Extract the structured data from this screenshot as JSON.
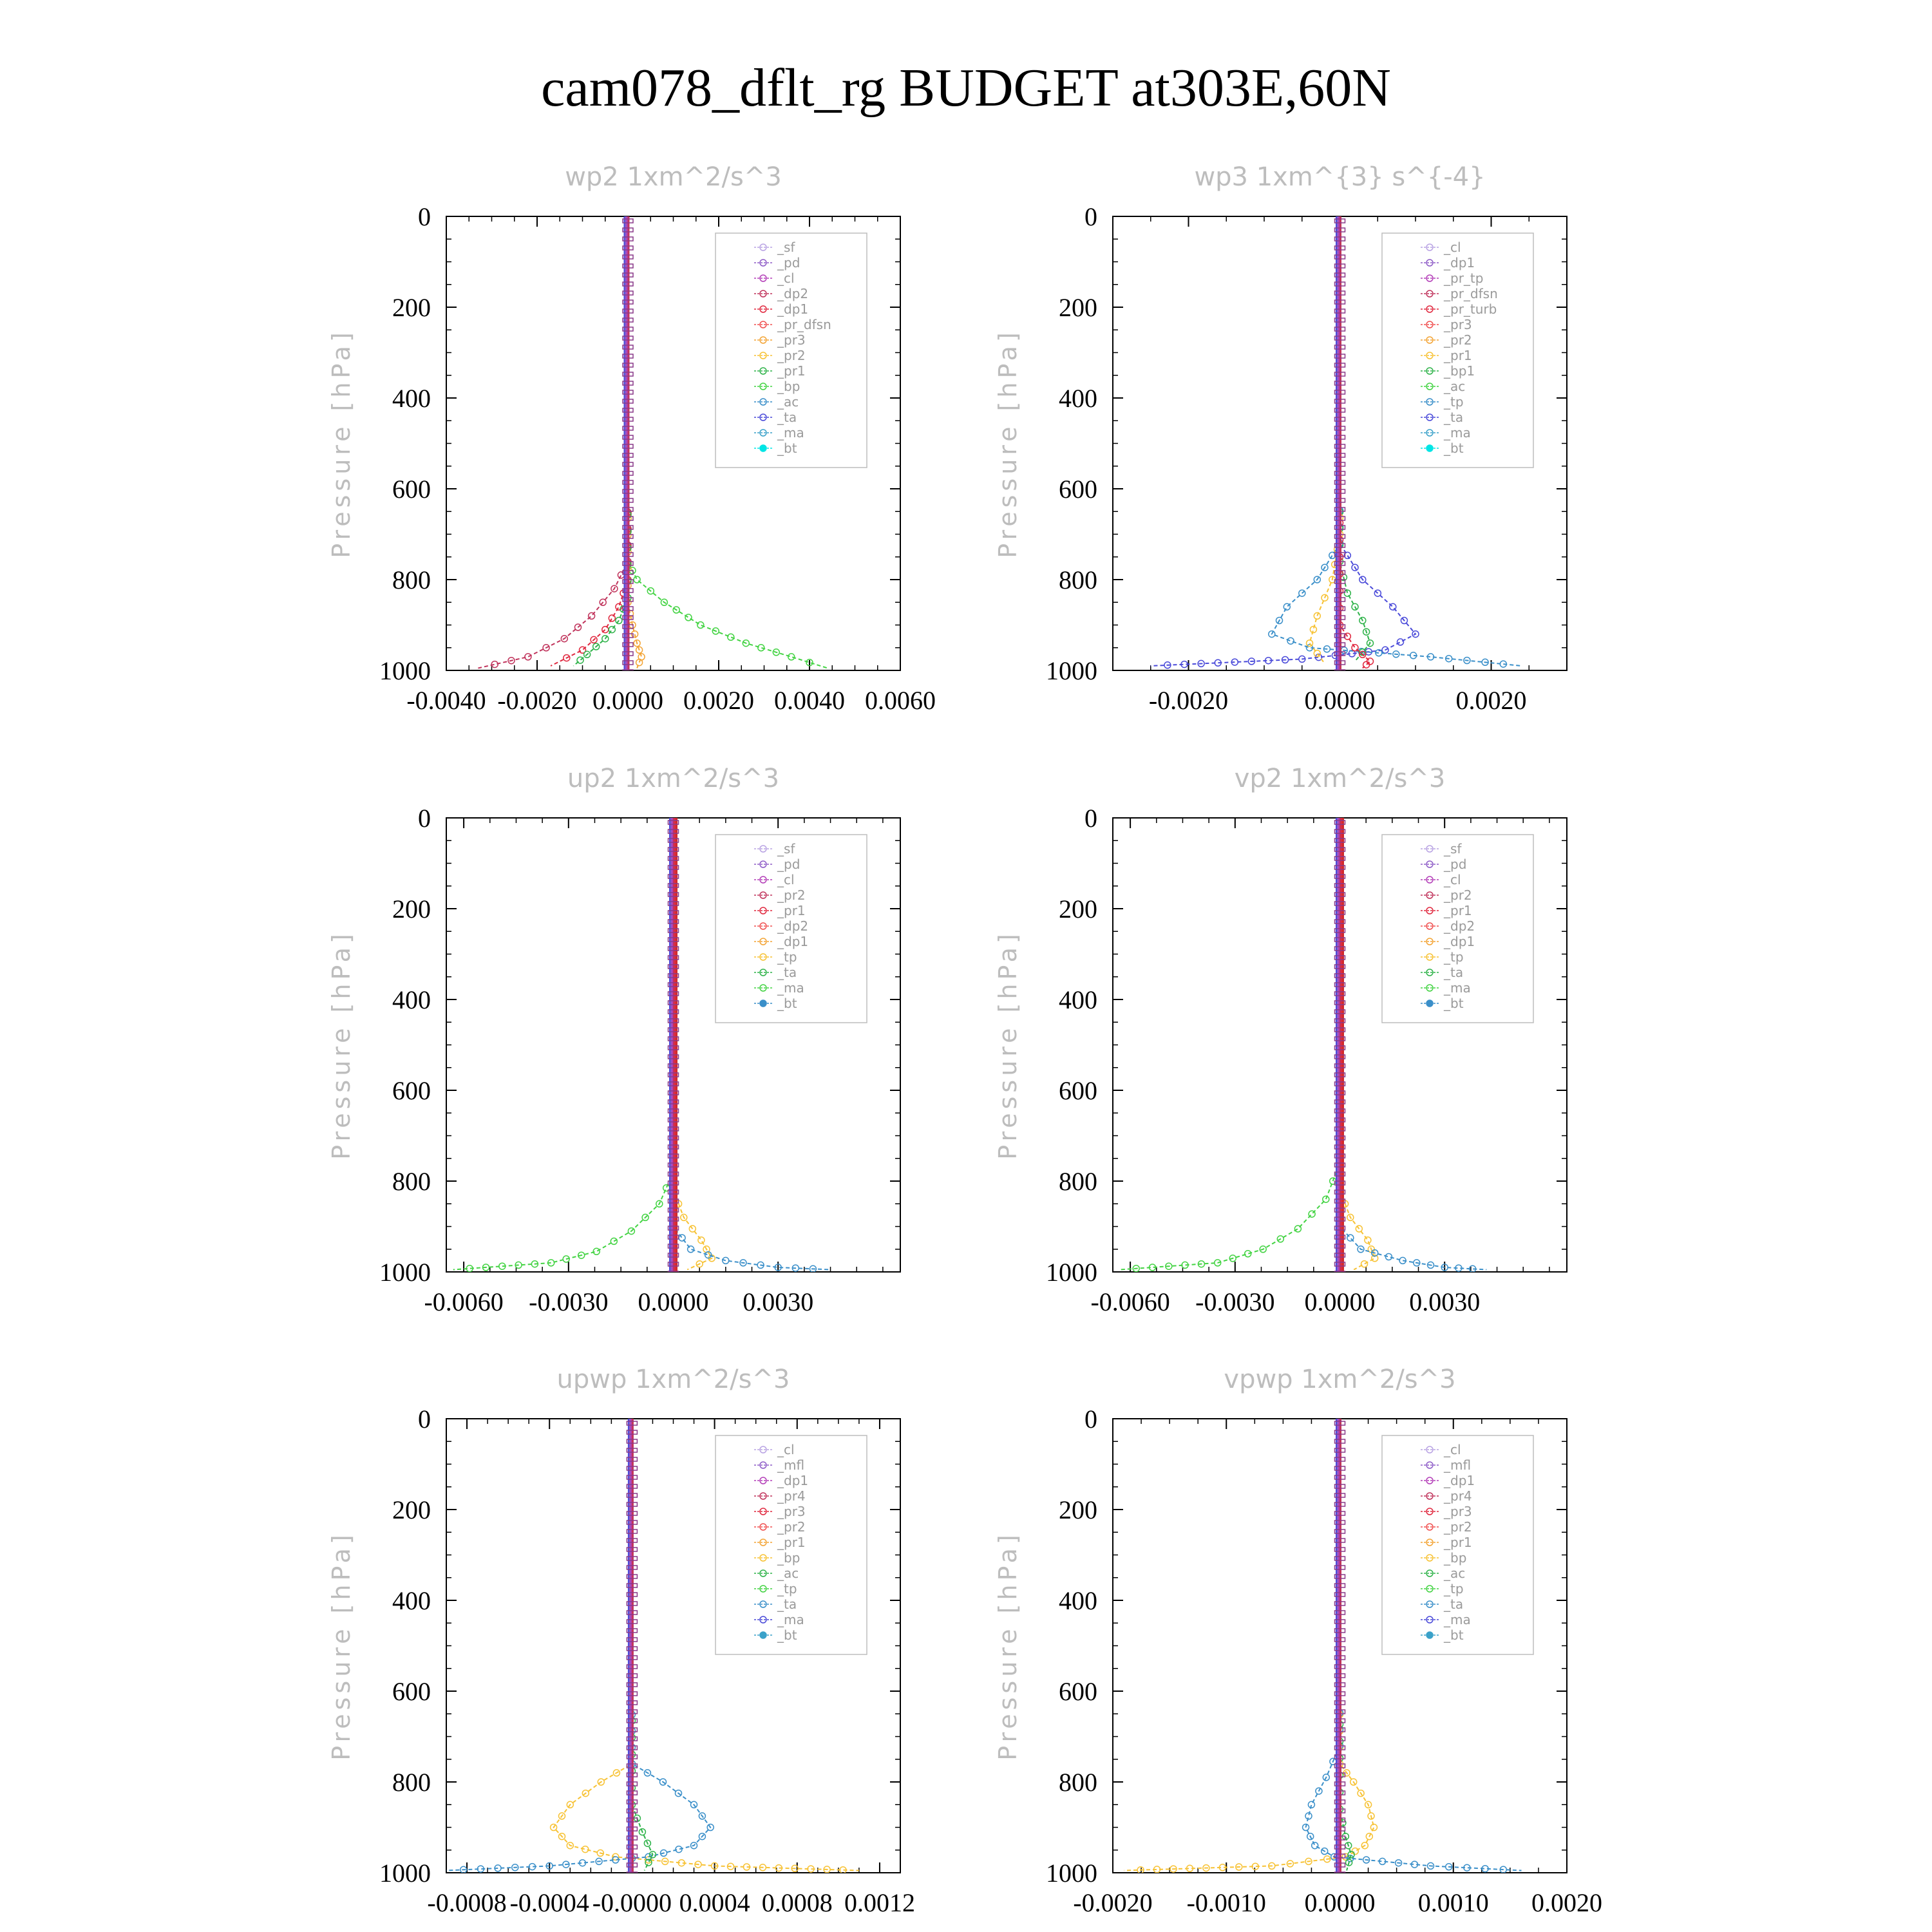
{
  "title": "cam078_dflt_rg  BUDGET at303E,60N",
  "colors": {
    "sf": "#b9a3e3",
    "pd": "#8e5cc7",
    "cl": "#b43fb8",
    "dp2": "#c0345c",
    "dp1": "#e0283f",
    "pr_dfsn": "#f05050",
    "pr3": "#f3a435",
    "pr2": "#f7c234",
    "pr1": "#2fb34a",
    "bp": "#43d343",
    "ac": "#3a8fc9",
    "ta": "#4a4ad9",
    "ma": "#3aa1c9",
    "bt": "#00e5e5"
  },
  "chart_data": [
    {
      "type": "line",
      "title": "wp2   1xm^2/s^3",
      "ylabel": "Pressure [hPa]",
      "ylim": [
        1000,
        0
      ],
      "yticks": [
        "0",
        "200",
        "400",
        "600",
        "800",
        "1000"
      ],
      "xlim": [
        -0.004,
        0.006
      ],
      "xticks": [
        "-0.0040",
        "-0.0020",
        "0.0000",
        "0.0020",
        "0.0040",
        "0.0060"
      ],
      "legend_position": "top-right",
      "legend": [
        "_sf",
        "_pd",
        "_cl",
        "_dp2",
        "_dp1",
        "_pr_dfsn",
        "_pr3",
        "_pr2",
        "_pr1",
        "_bp",
        "_ac",
        "_ta",
        "_ma",
        "_bt"
      ],
      "series": [
        {
          "name": "_bp",
          "color": "#43d343",
          "x": [
            0,
            0,
            0.0002,
            0.0008,
            0.0016,
            0.0026,
            0.0036,
            0.0044
          ],
          "y": [
            0,
            760,
            800,
            850,
            900,
            940,
            970,
            995
          ]
        },
        {
          "name": "_dp2",
          "color": "#c0345c",
          "x": [
            0,
            0,
            -0.0003,
            -0.0008,
            -0.0014,
            -0.0022,
            -0.0033
          ],
          "y": [
            0,
            760,
            820,
            880,
            930,
            970,
            995
          ]
        },
        {
          "name": "_dp1",
          "color": "#e0283f",
          "x": [
            0,
            0,
            -0.0002,
            -0.0005,
            -0.001,
            -0.0017
          ],
          "y": [
            0,
            800,
            860,
            910,
            955,
            990
          ]
        },
        {
          "name": "_pr3",
          "color": "#f3a435",
          "x": [
            0,
            0,
            0.0001,
            0.0002,
            0.0003,
            0.0002
          ],
          "y": [
            0,
            850,
            900,
            940,
            970,
            995
          ]
        },
        {
          "name": "_pr1",
          "color": "#2fb34a",
          "x": [
            0,
            0,
            -0.0002,
            -0.0005,
            -0.0009,
            -0.0012
          ],
          "y": [
            0,
            840,
            890,
            930,
            965,
            990
          ]
        }
      ]
    },
    {
      "type": "line",
      "title": "wp3   1xm^{3} s^{-4}",
      "ylabel": "Pressure [hPa]",
      "ylim": [
        1000,
        0
      ],
      "yticks": [
        "0",
        "200",
        "400",
        "600",
        "800",
        "1000"
      ],
      "xlim": [
        -0.003,
        0.003
      ],
      "xticks": [
        "-0.0020",
        "0.0000",
        "0.0020"
      ],
      "legend_position": "top-right",
      "legend": [
        "_cl",
        "_dp1",
        "_pr_tp",
        "_pr_dfsn",
        "_pr_turb",
        "_pr3",
        "_pr2",
        "_pr1",
        "_bp1",
        "_ac",
        "_tp",
        "_ta",
        "_ma",
        "_bt"
      ],
      "series": [
        {
          "name": "_ta",
          "color": "#4a4ad9",
          "x": [
            0,
            0,
            0.0003,
            0.0007,
            0.001,
            0.0006,
            -0.0005,
            -0.0025
          ],
          "y": [
            0,
            720,
            800,
            860,
            920,
            955,
            975,
            990
          ]
        },
        {
          "name": "_tp",
          "color": "#3a8fc9",
          "x": [
            0,
            0,
            -0.0003,
            -0.0007,
            -0.0009,
            -0.0004,
            0.0012,
            0.0024
          ],
          "y": [
            0,
            720,
            800,
            860,
            920,
            950,
            970,
            990
          ]
        },
        {
          "name": "_pr1",
          "color": "#2fb34a",
          "x": [
            0,
            0,
            0.0001,
            0.0003,
            0.0004,
            0.0002
          ],
          "y": [
            0,
            760,
            830,
            890,
            940,
            980
          ]
        },
        {
          "name": "_pr2",
          "color": "#f7c234",
          "x": [
            0,
            0,
            -0.0001,
            -0.0003,
            -0.0004,
            -0.0002
          ],
          "y": [
            0,
            700,
            800,
            880,
            940,
            985
          ]
        },
        {
          "name": "_dp1",
          "color": "#e0283f",
          "x": [
            0,
            0,
            0.0002,
            0.0004,
            0.0003
          ],
          "y": [
            0,
            900,
            950,
            980,
            995
          ]
        }
      ]
    },
    {
      "type": "line",
      "title": "up2   1xm^2/s^3",
      "ylabel": "Pressure [hPa]",
      "ylim": [
        1000,
        0
      ],
      "yticks": [
        "0",
        "200",
        "400",
        "600",
        "800",
        "1000"
      ],
      "xlim": [
        -0.0065,
        0.0065
      ],
      "xticks": [
        "-0.0060",
        "-0.0030",
        "0.0000",
        "0.0030"
      ],
      "legend_position": "top-right",
      "legend": [
        "_sf",
        "_pd",
        "_cl",
        "_pr2",
        "_pr1",
        "_dp2",
        "_dp1",
        "_tp",
        "_ta",
        "_ma",
        "_bt"
      ],
      "series": [
        {
          "name": "_dp1",
          "color": "#43d343",
          "x": [
            0,
            0,
            -0.0004,
            -0.0012,
            -0.0022,
            -0.0035,
            -0.0063
          ],
          "y": [
            0,
            780,
            850,
            910,
            955,
            980,
            995
          ]
        },
        {
          "name": "_pr2",
          "color": "#f7c234",
          "x": [
            0,
            0,
            0.0003,
            0.0008,
            0.0011,
            0.0004
          ],
          "y": [
            0,
            820,
            880,
            930,
            970,
            995
          ]
        },
        {
          "name": "_tp",
          "color": "#3a8fc9",
          "x": [
            0,
            0,
            0.0005,
            0.0015,
            0.003,
            0.0045
          ],
          "y": [
            0,
            900,
            950,
            975,
            990,
            995
          ]
        }
      ]
    },
    {
      "type": "line",
      "title": "vp2   1xm^2/s^3",
      "ylabel": "Pressure [hPa]",
      "ylim": [
        1000,
        0
      ],
      "yticks": [
        "0",
        "200",
        "400",
        "600",
        "800",
        "1000"
      ],
      "xlim": [
        -0.0065,
        0.0065
      ],
      "xticks": [
        "-0.0060",
        "-0.0030",
        "0.0000",
        "0.0030"
      ],
      "legend_position": "top-right",
      "legend": [
        "_sf",
        "_pd",
        "_cl",
        "_pr2",
        "_pr1",
        "_dp2",
        "_dp1",
        "_tp",
        "_ta",
        "_ma",
        "_bt"
      ],
      "series": [
        {
          "name": "_dp1",
          "color": "#43d343",
          "x": [
            0,
            0,
            -0.0004,
            -0.0012,
            -0.0022,
            -0.0035,
            -0.0063
          ],
          "y": [
            0,
            760,
            840,
            905,
            950,
            980,
            995
          ]
        },
        {
          "name": "_pr2",
          "color": "#f7c234",
          "x": [
            0,
            0,
            0.0003,
            0.0008,
            0.001,
            0.0004
          ],
          "y": [
            0,
            820,
            880,
            930,
            970,
            995
          ]
        },
        {
          "name": "_tp",
          "color": "#3a8fc9",
          "x": [
            0,
            0,
            0.0006,
            0.0018,
            0.003,
            0.0042
          ],
          "y": [
            0,
            900,
            950,
            975,
            990,
            995
          ]
        }
      ]
    },
    {
      "type": "line",
      "title": "upwp    1xm^2/s^3",
      "ylabel": "Pressure [hPa]",
      "ylim": [
        1000,
        0
      ],
      "yticks": [
        "0",
        "200",
        "400",
        "600",
        "800",
        "1000"
      ],
      "xlim": [
        -0.0009,
        0.0013
      ],
      "xticks": [
        "-0.0008",
        "-0.0004",
        "-0.0000",
        "0.0004",
        "0.0008",
        "0.0012"
      ],
      "legend_position": "top-right",
      "legend": [
        "_cl",
        "_mfl",
        "_dp1",
        "_pr4",
        "_pr3",
        "_pr2",
        "_pr1",
        "_bp",
        "_ac",
        "_tp",
        "_ta",
        "_ma",
        "_bt"
      ],
      "series": [
        {
          "name": "_pr1",
          "color": "#f7c234",
          "x": [
            0,
            0,
            -0.00015,
            -0.0003,
            -0.00038,
            -0.0003,
            -8e-05,
            0.0004,
            0.0011
          ],
          "y": [
            0,
            760,
            800,
            850,
            900,
            940,
            965,
            985,
            995
          ]
        },
        {
          "name": "_tp",
          "color": "#3a8fc9",
          "x": [
            0,
            0,
            0.00015,
            0.0003,
            0.00038,
            0.0003,
            8e-05,
            -0.0004,
            -0.0009
          ],
          "y": [
            0,
            760,
            800,
            850,
            900,
            940,
            965,
            985,
            995
          ]
        },
        {
          "name": "_bp",
          "color": "#2fb34a",
          "x": [
            0,
            0,
            5e-05,
            0.0001,
            6e-05
          ],
          "y": [
            0,
            850,
            910,
            960,
            995
          ]
        }
      ]
    },
    {
      "type": "line",
      "title": "vpwp    1xm^2/s^3",
      "ylabel": "Pressure [hPa]",
      "ylim": [
        1000,
        0
      ],
      "yticks": [
        "0",
        "200",
        "400",
        "600",
        "800",
        "1000"
      ],
      "xlim": [
        -0.002,
        0.002
      ],
      "xticks": [
        "-0.0020",
        "-0.0010",
        "0.0000",
        "0.0010",
        "0.0020"
      ],
      "legend_position": "top-right",
      "legend": [
        "_cl",
        "_mfl",
        "_dp1",
        "_pr4",
        "_pr3",
        "_pr2",
        "_pr1",
        "_bp",
        "_ac",
        "_tp",
        "_ta",
        "_ma",
        "_bt"
      ],
      "series": [
        {
          "name": "_pr1",
          "color": "#f7c234",
          "x": [
            0,
            0,
            0.00012,
            0.00025,
            0.0003,
            0.00022,
            5e-05,
            -0.0006,
            -0.0019
          ],
          "y": [
            0,
            760,
            800,
            850,
            900,
            940,
            965,
            985,
            995
          ]
        },
        {
          "name": "_tp",
          "color": "#3a8fc9",
          "x": [
            0,
            0,
            -0.00012,
            -0.00025,
            -0.0003,
            -0.00022,
            -5e-05,
            0.0008,
            0.0016
          ],
          "y": [
            0,
            720,
            790,
            850,
            900,
            940,
            965,
            985,
            995
          ]
        },
        {
          "name": "_bp",
          "color": "#2fb34a",
          "x": [
            0,
            0,
            5e-05,
            0.0001,
            6e-05
          ],
          "y": [
            0,
            860,
            920,
            960,
            995
          ]
        }
      ]
    }
  ]
}
